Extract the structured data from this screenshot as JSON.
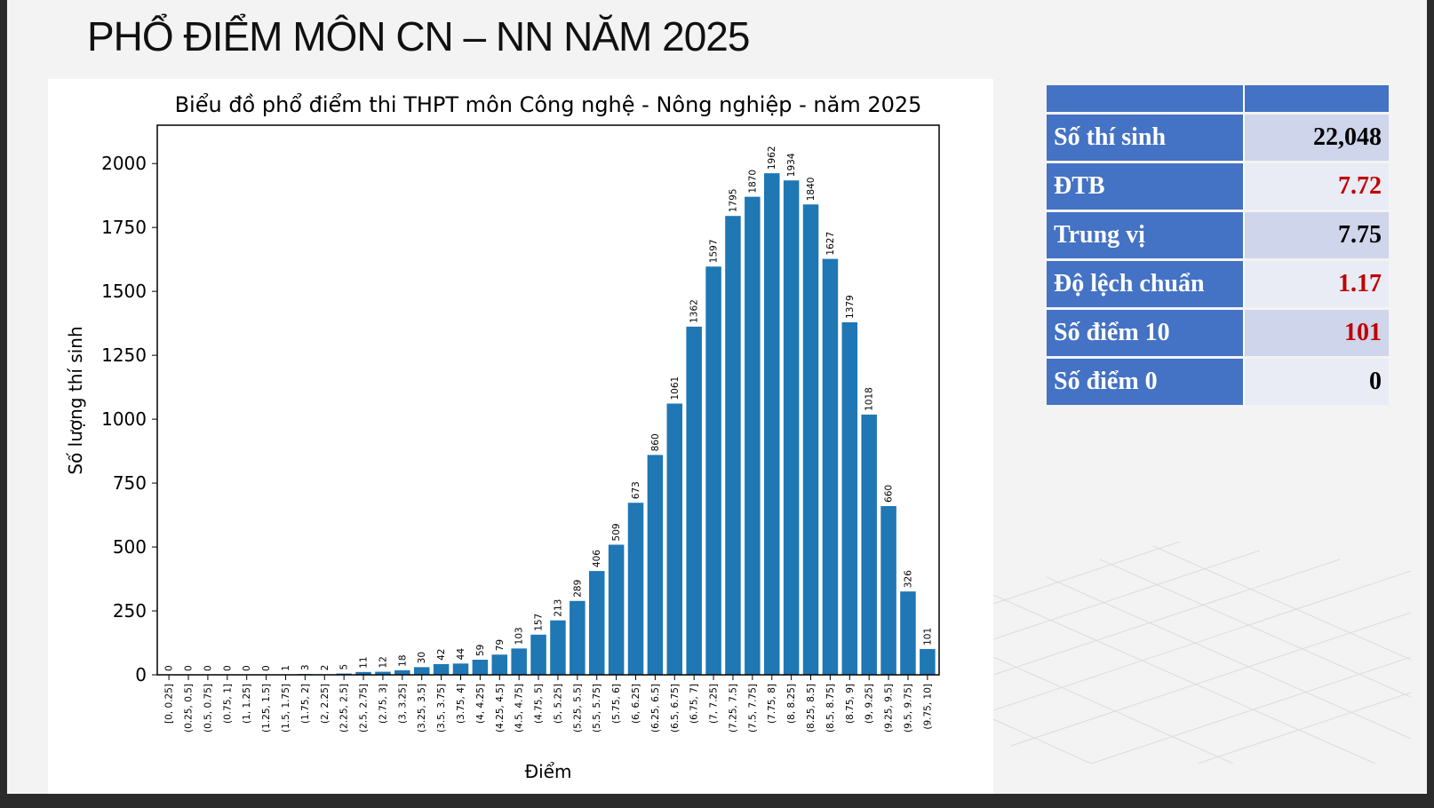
{
  "slide": {
    "title": "PHỔ ĐIỂM MÔN CN – NN NĂM 2025"
  },
  "stats": {
    "rows": [
      {
        "label": "Số thí sinh",
        "value": "22,048",
        "highlight": false
      },
      {
        "label": "ĐTB",
        "value": "7.72",
        "highlight": true
      },
      {
        "label": "Trung vị",
        "value": "7.75",
        "highlight": false
      },
      {
        "label": "Độ lệch chuẩn",
        "value": "1.17",
        "highlight": true
      },
      {
        "label": "Số điểm 10",
        "value": "101",
        "highlight": true
      },
      {
        "label": "Số điểm 0",
        "value": "0",
        "highlight": false
      }
    ],
    "header_color": "#4472c4",
    "highlight_color": "#c00000"
  },
  "chart_data": {
    "type": "bar",
    "title": "Biểu đồ phổ điểm thi THPT môn Công nghệ - Nông nghiệp - năm 2025",
    "xlabel": "Điểm",
    "ylabel": "Số lượng thí sinh",
    "ylim": [
      0,
      2150
    ],
    "yticks": [
      0,
      250,
      500,
      750,
      1000,
      1250,
      1500,
      1750,
      2000
    ],
    "bar_color": "#1f77b4",
    "grid": false,
    "categories": [
      "[0, 0.25]",
      "(0.25, 0.5]",
      "(0.5, 0.75]",
      "(0.75, 1]",
      "(1, 1.25]",
      "(1.25, 1.5]",
      "(1.5, 1.75]",
      "(1.75, 2]",
      "(2, 2.25]",
      "(2.25, 2.5]",
      "(2.5, 2.75]",
      "(2.75, 3]",
      "(3, 3.25]",
      "(3.25, 3.5]",
      "(3.5, 3.75]",
      "(3.75, 4]",
      "(4, 4.25]",
      "(4.25, 4.5]",
      "(4.5, 4.75]",
      "(4.75, 5]",
      "(5, 5.25]",
      "(5.25, 5.5]",
      "(5.5, 5.75]",
      "(5.75, 6]",
      "(6, 6.25]",
      "(6.25, 6.5]",
      "(6.5, 6.75]",
      "(6.75, 7]",
      "(7, 7.25]",
      "(7.25, 7.5]",
      "(7.5, 7.75]",
      "(7.75, 8]",
      "(8, 8.25]",
      "(8.25, 8.5]",
      "(8.5, 8.75]",
      "(8.75, 9]",
      "(9, 9.25]",
      "(9.25, 9.5]",
      "(9.5, 9.75]",
      "(9.75, 10]"
    ],
    "values": [
      0,
      0,
      0,
      0,
      0,
      0,
      1,
      3,
      2,
      5,
      11,
      12,
      18,
      30,
      42,
      44,
      59,
      79,
      103,
      157,
      213,
      289,
      406,
      509,
      673,
      860,
      1061,
      1362,
      1597,
      1795,
      1870,
      1962,
      1934,
      1840,
      1627,
      1379,
      1018,
      660,
      326,
      101
    ]
  }
}
